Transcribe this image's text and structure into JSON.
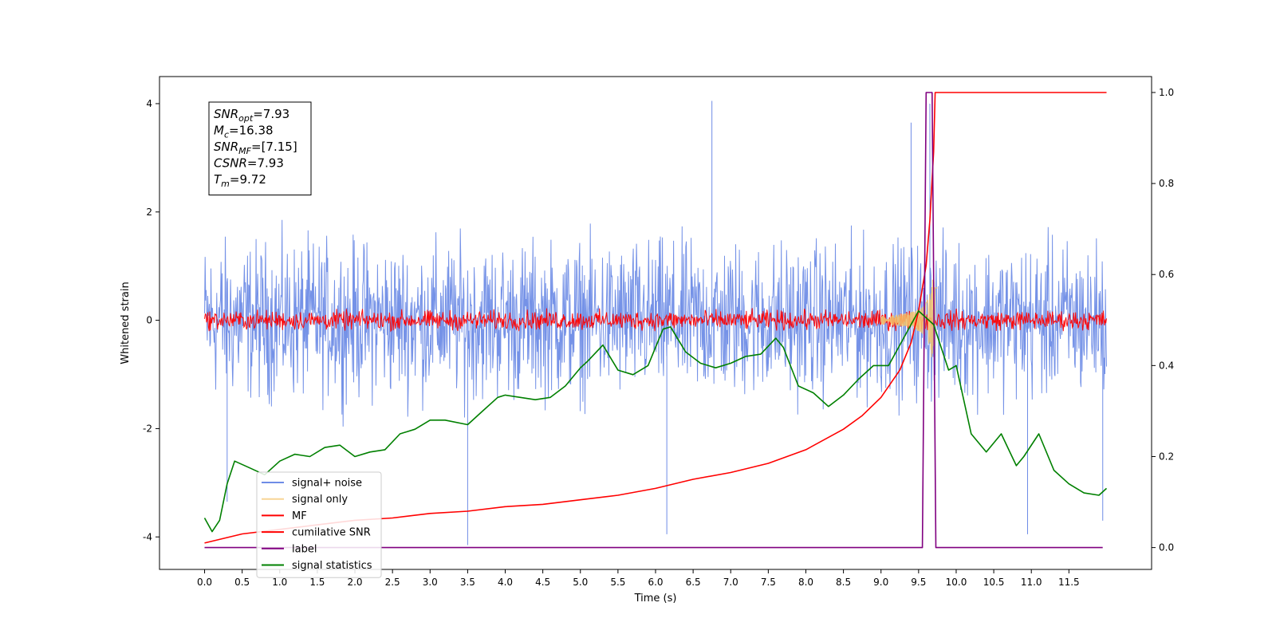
{
  "chart_data": {
    "type": "line",
    "xlabel": "Time (s)",
    "ylabel": "Whitened strain",
    "xlim": [
      -0.6,
      12.6
    ],
    "ylim": [
      -4.6,
      4.5
    ],
    "y2lim": [
      -0.048,
      1.035
    ],
    "xticks": [
      "0.0",
      "0.5",
      "1.0",
      "1.5",
      "2.0",
      "2.5",
      "3.0",
      "3.5",
      "4.0",
      "4.5",
      "5.0",
      "5.5",
      "6.0",
      "6.5",
      "7.0",
      "7.5",
      "8.0",
      "8.5",
      "9.0",
      "9.5",
      "10.0",
      "10.5",
      "11.0",
      "11.5"
    ],
    "yticks": [
      "-4",
      "-2",
      "0",
      "2",
      "4"
    ],
    "y2ticks": [
      "0.0",
      "0.2",
      "0.4",
      "0.6",
      "0.8",
      "1.0"
    ],
    "legend_position": "lower-left",
    "annotation": [
      {
        "sym": "SNR",
        "sub": "opt",
        "value": "=7.93"
      },
      {
        "sym": "M",
        "sub": "c",
        "value": "=16.38"
      },
      {
        "sym": "SNR",
        "sub": "MF",
        "value": "=[7.15]"
      },
      {
        "sym": "CSNR",
        "sub": "",
        "value": "=7.93"
      },
      {
        "sym": "T",
        "sub": "m",
        "value": "=9.72"
      }
    ],
    "series": [
      {
        "name": "signal+ noise",
        "color": "#6e8ce6",
        "axis": "left",
        "kind": "noise",
        "x_range": [
          0,
          12
        ],
        "mean": 0.0,
        "amplitude": 1.2,
        "max": 4.05,
        "min": -4.15
      },
      {
        "name": "signal only",
        "color": "#f5c36a",
        "axis": "left",
        "kind": "chirp",
        "x_range": [
          9.0,
          9.75
        ],
        "peak_time": 9.72,
        "peak_amplitude": 0.75
      },
      {
        "name": "MF",
        "color": "#ff0000",
        "axis": "left",
        "kind": "noise",
        "x_range": [
          0,
          12
        ],
        "mean": 0.0,
        "amplitude": 0.15,
        "max": 0.45,
        "min": -0.2
      },
      {
        "name": "cumilative SNR",
        "color": "#ff0000",
        "axis": "right",
        "x": [
          0,
          0.5,
          1,
          1.5,
          2,
          2.5,
          3,
          3.5,
          4,
          4.5,
          5,
          5.5,
          6,
          6.5,
          7,
          7.5,
          8,
          8.5,
          8.75,
          9,
          9.25,
          9.4,
          9.5,
          9.6,
          9.65,
          9.7,
          9.72,
          12
        ],
        "y": [
          0.01,
          0.03,
          0.04,
          0.05,
          0.06,
          0.065,
          0.075,
          0.08,
          0.09,
          0.095,
          0.105,
          0.115,
          0.13,
          0.15,
          0.165,
          0.185,
          0.215,
          0.26,
          0.29,
          0.33,
          0.39,
          0.45,
          0.52,
          0.62,
          0.72,
          0.87,
          1.0,
          1.0
        ]
      },
      {
        "name": "label",
        "color": "#800080",
        "axis": "right",
        "x": [
          0,
          9.55,
          9.6,
          9.68,
          9.73,
          11.0,
          11.95
        ],
        "y": [
          0,
          0,
          1,
          1,
          0,
          0,
          0
        ]
      },
      {
        "name": "signal statistics",
        "color": "#008000",
        "axis": "right",
        "x": [
          0,
          0.1,
          0.2,
          0.3,
          0.4,
          0.6,
          0.8,
          1,
          1.2,
          1.4,
          1.6,
          1.8,
          2,
          2.2,
          2.4,
          2.6,
          2.8,
          3,
          3.2,
          3.5,
          3.7,
          3.9,
          4,
          4.2,
          4.4,
          4.6,
          4.8,
          5,
          5.1,
          5.3,
          5.5,
          5.7,
          5.9,
          6.1,
          6.2,
          6.4,
          6.6,
          6.8,
          7,
          7.2,
          7.4,
          7.6,
          7.7,
          7.9,
          8.1,
          8.3,
          8.5,
          8.7,
          8.9,
          9.1,
          9.3,
          9.5,
          9.7,
          9.9,
          10,
          10.2,
          10.4,
          10.6,
          10.8,
          10.9,
          11.1,
          11.3,
          11.5,
          11.7,
          11.9,
          12
        ],
        "y": [
          0.065,
          0.035,
          0.06,
          0.14,
          0.19,
          0.175,
          0.16,
          0.19,
          0.205,
          0.2,
          0.22,
          0.225,
          0.2,
          0.21,
          0.215,
          0.25,
          0.26,
          0.28,
          0.28,
          0.27,
          0.3,
          0.33,
          0.335,
          0.33,
          0.325,
          0.33,
          0.355,
          0.395,
          0.41,
          0.445,
          0.39,
          0.38,
          0.4,
          0.48,
          0.485,
          0.43,
          0.405,
          0.395,
          0.405,
          0.42,
          0.425,
          0.46,
          0.44,
          0.355,
          0.34,
          0.31,
          0.335,
          0.37,
          0.4,
          0.4,
          0.46,
          0.52,
          0.49,
          0.39,
          0.4,
          0.25,
          0.21,
          0.25,
          0.18,
          0.2,
          0.25,
          0.17,
          0.14,
          0.12,
          0.115,
          0.13
        ]
      }
    ]
  }
}
